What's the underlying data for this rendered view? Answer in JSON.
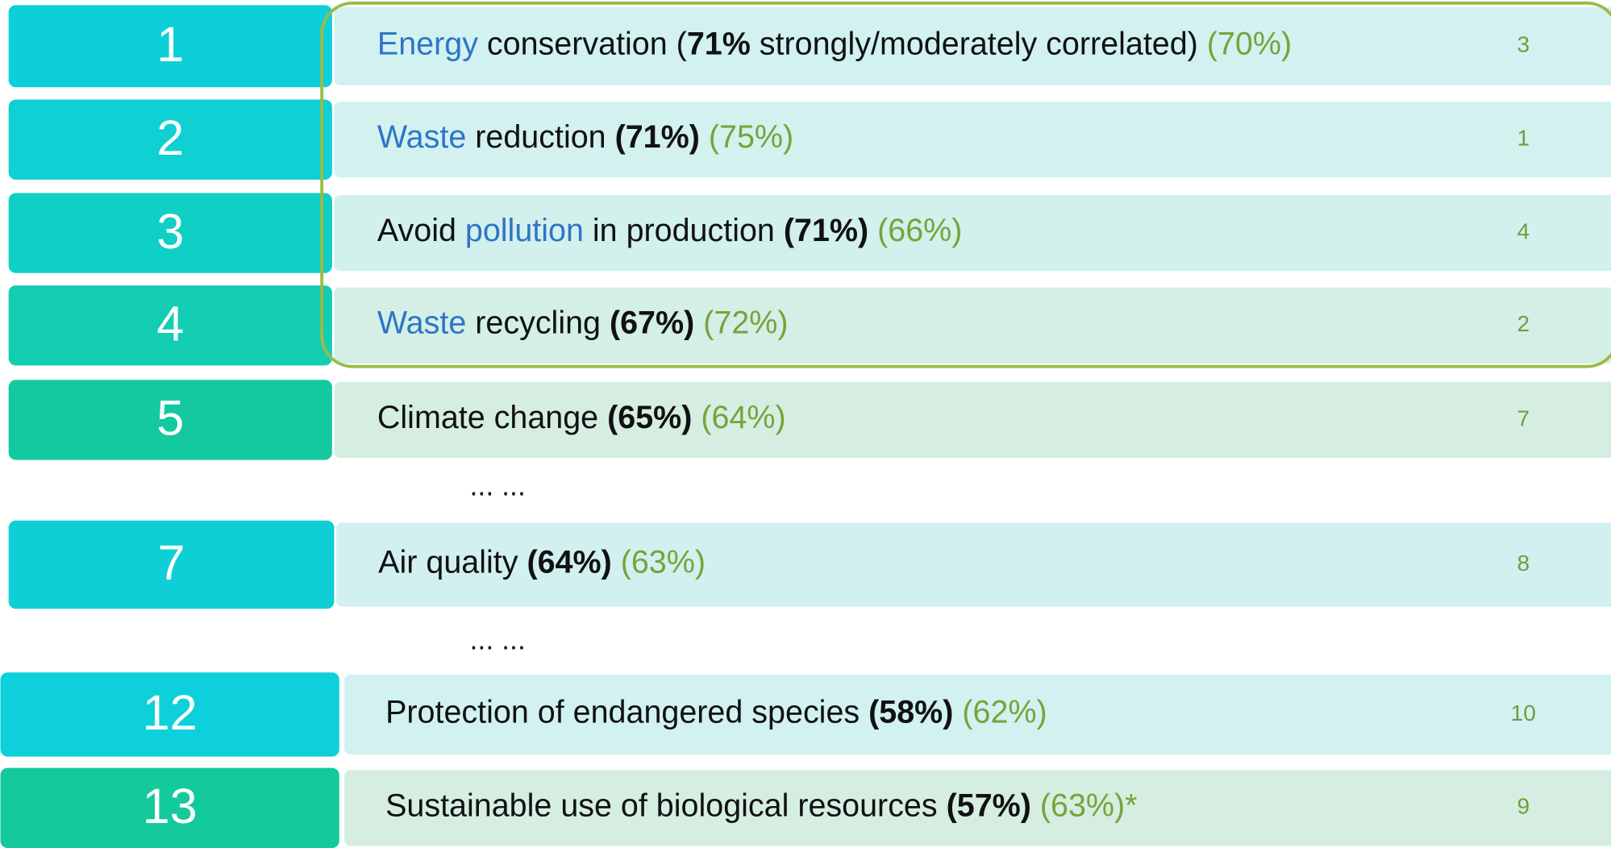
{
  "items": [
    {
      "rank": "1",
      "rank_color": "#0dcfd9",
      "bar_color": "#d2f1f1",
      "note": "3",
      "text": [
        {
          "text": "Energy",
          "color": "#2e75c5"
        },
        {
          "text": " conservation (",
          "color": "#111111"
        },
        {
          "text": "71%",
          "color": "#111111",
          "bold": true
        },
        {
          "text": " strongly/moderately correlated) ",
          "color": "#111111"
        },
        {
          "text": "(70%)",
          "color": "#77a33a"
        }
      ]
    },
    {
      "rank": "2",
      "rank_color": "#0fd0d2",
      "bar_color": "#d2f1ef",
      "note": "1",
      "text": [
        {
          "text": "Waste",
          "color": "#2e75c5"
        },
        {
          "text": " reduction ",
          "color": "#111111"
        },
        {
          "text": "(71%)",
          "color": "#111111",
          "bold": true
        },
        {
          "text": " (75%)",
          "color": "#77a33a"
        }
      ]
    },
    {
      "rank": "3",
      "rank_color": "#10cfc4",
      "bar_color": "#d2f0ec",
      "note": "4",
      "text": [
        {
          "text": "Avoid ",
          "color": "#111111"
        },
        {
          "text": "pollution",
          "color": "#2e75c5"
        },
        {
          "text": " in production ",
          "color": "#111111"
        },
        {
          "text": "(71%)",
          "color": "#111111",
          "bold": true
        },
        {
          "text": " (66%)",
          "color": "#77a33a"
        }
      ]
    },
    {
      "rank": "4",
      "rank_color": "#12cdb2",
      "bar_color": "#d3efe6",
      "note": "2",
      "text": [
        {
          "text": "Waste",
          "color": "#2e75c5"
        },
        {
          "text": " recycling ",
          "color": "#111111"
        },
        {
          "text": "(67%)",
          "color": "#111111",
          "bold": true
        },
        {
          "text": " (72%)",
          "color": "#77a33a"
        }
      ]
    },
    {
      "rank": "5",
      "rank_color": "#14c9a0",
      "bar_color": "#d5eee1",
      "note": "7",
      "text": [
        {
          "text": "Climate change ",
          "color": "#111111"
        },
        {
          "text": "(65%)",
          "color": "#111111",
          "bold": true
        },
        {
          "text": " (64%)",
          "color": "#77a33a"
        }
      ]
    },
    {
      "ellipsis": "... ..."
    },
    {
      "rank": "7",
      "rank_color": "#0ecfd6",
      "bar_color": "#d2f0f0",
      "note": "8",
      "text": [
        {
          "text": "Air quality ",
          "color": "#111111"
        },
        {
          "text": "(64%)",
          "color": "#111111",
          "bold": true
        },
        {
          "text": " (63%)",
          "color": "#77a33a"
        }
      ]
    },
    {
      "ellipsis": "... ..."
    },
    {
      "rank": "12",
      "rank_color": "#0dd0da",
      "bar_color": "#d2f1f1",
      "note": "10",
      "text": [
        {
          "text": "Protection of endangered species ",
          "color": "#111111"
        },
        {
          "text": "(58%)",
          "color": "#111111",
          "bold": true
        },
        {
          "text": " (62%)",
          "color": "#77a33a"
        }
      ]
    },
    {
      "rank": "13",
      "rank_color": "#14c99c",
      "bar_color": "#d5eee1",
      "note": "9",
      "text": [
        {
          "text": "Sustainable use of biological resources ",
          "color": "#111111"
        },
        {
          "text": "(57%)",
          "color": "#111111",
          "bold": true
        },
        {
          "text": " (63%)*",
          "color": "#77a33a"
        }
      ]
    }
  ]
}
